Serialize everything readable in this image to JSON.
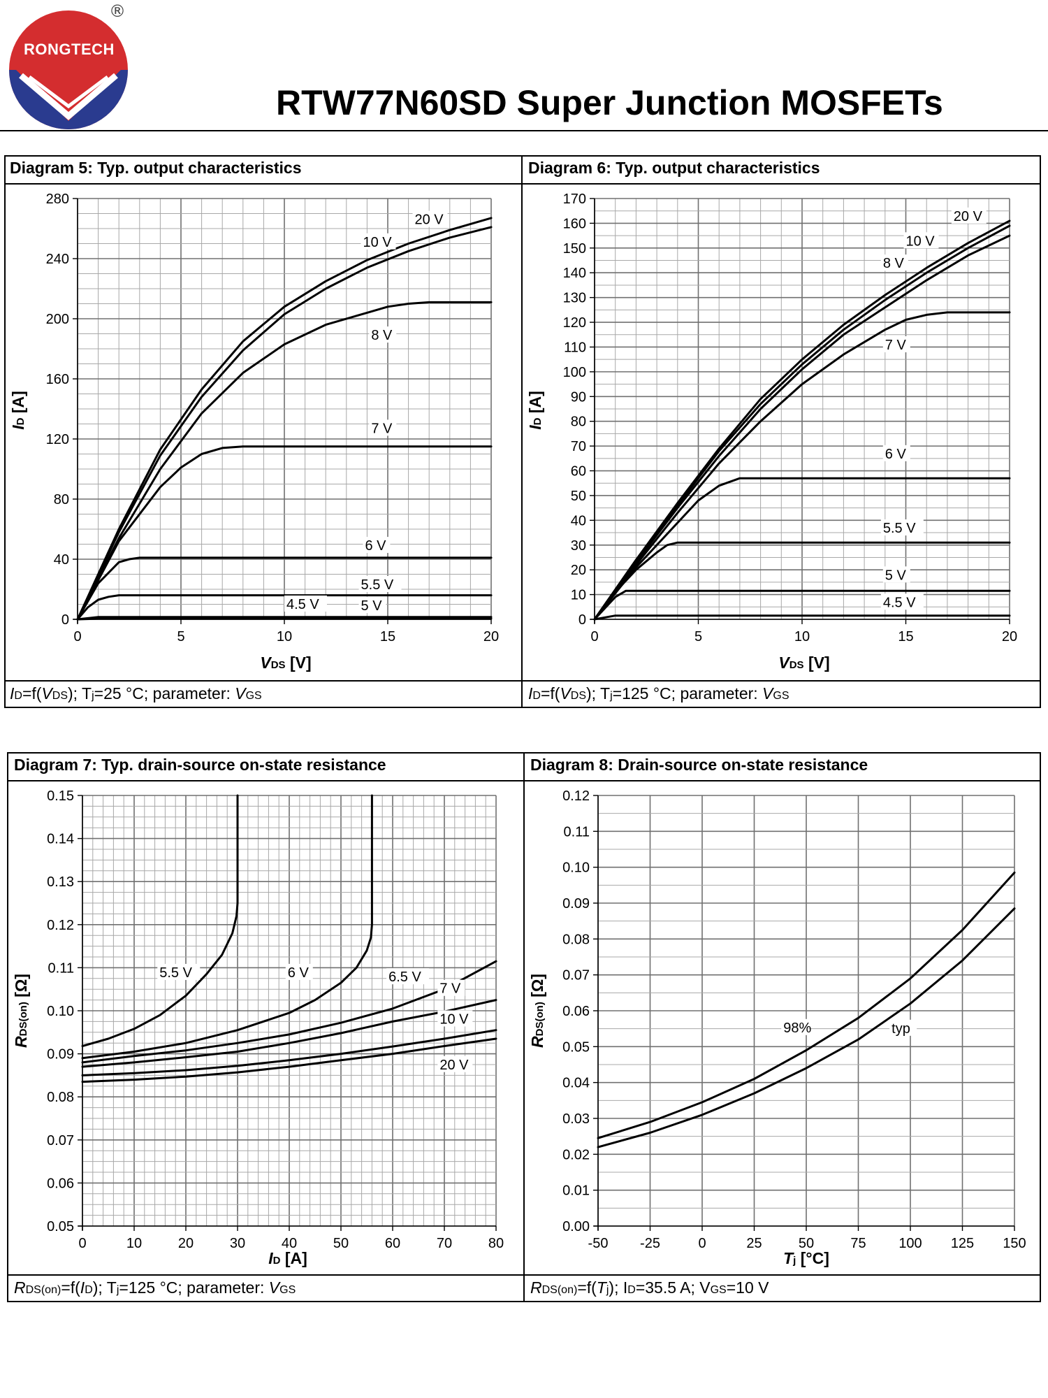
{
  "header": {
    "brand": "RONGTECH",
    "registered": "®",
    "title": "RTW77N60SD Super Junction MOSFETs",
    "colors": {
      "red": "#d42d2f",
      "blue": "#2a3b8f"
    }
  },
  "diagrams": [
    {
      "heading": "Diagram 5: Typ. output characteristics",
      "footer": {
        "y": "I",
        "ysub": "D",
        "mid": "=f(",
        "x": "V",
        "xsub": "DS",
        "tail": "); T",
        "tsub": "j",
        "cond": "=25 °C; parameter: ",
        "p": "V",
        "psub": "GS"
      }
    },
    {
      "heading": "Diagram 6: Typ. output characteristics",
      "footer": {
        "y": "I",
        "ysub": "D",
        "mid": "=f(",
        "x": "V",
        "xsub": "DS",
        "tail": "); T",
        "tsub": "j",
        "cond": "=125 °C; parameter: ",
        "p": "V",
        "psub": "GS"
      }
    },
    {
      "heading": "Diagram 7: Typ. drain-source on-state resistance",
      "footer": {
        "y": "R",
        "ysub": "DS(on)",
        "mid": "=f(",
        "x": "I",
        "xsub": "D",
        "tail": "); T",
        "tsub": "j",
        "cond": "=125 °C; parameter: ",
        "p": "V",
        "psub": "GS"
      }
    },
    {
      "heading": "Diagram 8: Drain-source on-state resistance",
      "footer": {
        "y": "R",
        "ysub": "DS(on)",
        "mid": "=f(",
        "x": "T",
        "xsub": "j",
        "tail": "); I",
        "tsub": "D",
        "cond": "=35.5 A; V",
        "p": "",
        "psub": "GS",
        "cond2": "=10 V"
      }
    }
  ],
  "chart_data": [
    {
      "type": "line",
      "title": "Diagram 5: Typ. output characteristics",
      "xlabel": {
        "main": "V",
        "sub": "DS",
        "unit": " [V]"
      },
      "ylabel": {
        "main": "I",
        "sub": "D",
        "unit": " [A]"
      },
      "xlim": [
        0,
        20
      ],
      "ylim": [
        0,
        280
      ],
      "xticks": [
        0,
        5,
        10,
        15,
        20
      ],
      "yticks": [
        0,
        40,
        80,
        120,
        160,
        200,
        240,
        280
      ],
      "xgrid": 1,
      "ygrid": 10,
      "series": [
        {
          "name": "20 V",
          "x": [
            0,
            2,
            4,
            6,
            8,
            10,
            12,
            14,
            16,
            18,
            20
          ],
          "y": [
            0,
            60,
            113,
            153,
            185,
            208,
            225,
            239,
            250,
            259,
            267
          ]
        },
        {
          "name": "10 V",
          "x": [
            0,
            2,
            4,
            6,
            8,
            10,
            12,
            14,
            16,
            18,
            20
          ],
          "y": [
            0,
            58,
            109,
            148,
            179,
            203,
            220,
            234,
            245,
            254,
            261
          ]
        },
        {
          "name": "8 V",
          "x": [
            0,
            2,
            4,
            6,
            8,
            10,
            12,
            14,
            15,
            16,
            17,
            20
          ],
          "y": [
            0,
            54,
            100,
            137,
            164,
            183,
            196,
            204,
            208,
            210,
            211,
            211
          ]
        },
        {
          "name": "7 V",
          "x": [
            0,
            2,
            4,
            5,
            6,
            7,
            8,
            20
          ],
          "y": [
            0,
            52,
            88,
            101,
            110,
            114,
            115,
            115
          ]
        },
        {
          "name": "6 V",
          "x": [
            0,
            1,
            2,
            2.5,
            3,
            20
          ],
          "y": [
            0,
            24,
            38,
            40,
            41,
            41
          ]
        },
        {
          "name": "5.5 V",
          "x": [
            0,
            0.5,
            1,
            1.5,
            2,
            20
          ],
          "y": [
            0,
            8,
            13,
            15,
            16,
            16
          ]
        },
        {
          "name": "5 V",
          "x": [
            0,
            1,
            20
          ],
          "y": [
            0,
            1.5,
            1.5
          ]
        },
        {
          "name": "4.5 V",
          "x": [
            0,
            1,
            20
          ],
          "y": [
            0,
            0.4,
            0.4
          ]
        }
      ],
      "labels": [
        {
          "text": "20 V",
          "x": 16.3,
          "y": 263
        },
        {
          "text": "10 V",
          "x": 13.8,
          "y": 248
        },
        {
          "text": "8 V",
          "x": 14.2,
          "y": 186
        },
        {
          "text": "7 V",
          "x": 14.2,
          "y": 124
        },
        {
          "text": "6 V",
          "x": 13.9,
          "y": 46
        },
        {
          "text": "5.5 V",
          "x": 13.7,
          "y": 20
        },
        {
          "text": "5 V",
          "x": 13.7,
          "y": 6
        },
        {
          "text": "4.5 V",
          "x": 10.1,
          "y": 7
        }
      ]
    },
    {
      "type": "line",
      "title": "Diagram 6: Typ. output characteristics",
      "xlabel": {
        "main": "V",
        "sub": "DS",
        "unit": " [V]"
      },
      "ylabel": {
        "main": "I",
        "sub": "D",
        "unit": " [A]"
      },
      "xlim": [
        0,
        20
      ],
      "ylim": [
        0,
        170
      ],
      "xticks": [
        0,
        5,
        10,
        15,
        20
      ],
      "yticks": [
        0,
        10,
        20,
        30,
        40,
        50,
        60,
        70,
        80,
        90,
        100,
        110,
        120,
        130,
        140,
        150,
        160,
        170
      ],
      "xgrid": 1,
      "ygrid": 5,
      "series": [
        {
          "name": "20 V",
          "x": [
            0,
            2,
            4,
            6,
            8,
            10,
            12,
            14,
            16,
            18,
            20
          ],
          "y": [
            0,
            24,
            47,
            69,
            89,
            105,
            119,
            131,
            142,
            152,
            161
          ]
        },
        {
          "name": "10 V",
          "x": [
            0,
            2,
            4,
            6,
            8,
            10,
            12,
            14,
            16,
            18,
            20
          ],
          "y": [
            0,
            24,
            46,
            68,
            87,
            103,
            117,
            129,
            140,
            150,
            159
          ]
        },
        {
          "name": "8 V",
          "x": [
            0,
            2,
            4,
            6,
            8,
            10,
            12,
            14,
            16,
            18,
            20
          ],
          "y": [
            0,
            23,
            45,
            66,
            85,
            101,
            115,
            126,
            137,
            147,
            155
          ]
        },
        {
          "name": "7 V",
          "x": [
            0,
            2,
            4,
            6,
            8,
            10,
            12,
            14,
            15,
            16,
            17,
            20
          ],
          "y": [
            0,
            22,
            43,
            63,
            80,
            95,
            107,
            117,
            121,
            123,
            124,
            124
          ]
        },
        {
          "name": "6 V",
          "x": [
            0,
            2,
            4,
            5,
            6,
            7,
            20
          ],
          "y": [
            0,
            21,
            39,
            48,
            54,
            57,
            57
          ]
        },
        {
          "name": "5.5 V",
          "x": [
            0,
            1,
            2,
            3,
            3.5,
            4,
            20
          ],
          "y": [
            0,
            11,
            20,
            27,
            30,
            31,
            31
          ]
        },
        {
          "name": "5 V",
          "x": [
            0,
            1,
            1.5,
            20
          ],
          "y": [
            0,
            9,
            11.5,
            11.5
          ]
        },
        {
          "name": "4.5 V",
          "x": [
            0,
            1,
            20
          ],
          "y": [
            0,
            1.5,
            1.5
          ]
        }
      ],
      "labels": [
        {
          "text": "20 V",
          "x": 17.3,
          "y": 161
        },
        {
          "text": "10 V",
          "x": 15.0,
          "y": 151
        },
        {
          "text": "8 V",
          "x": 13.9,
          "y": 142
        },
        {
          "text": "7 V",
          "x": 14.0,
          "y": 109
        },
        {
          "text": "6 V",
          "x": 14.0,
          "y": 65
        },
        {
          "text": "5.5 V",
          "x": 13.9,
          "y": 35
        },
        {
          "text": "5 V",
          "x": 14.0,
          "y": 16
        },
        {
          "text": "4.5 V",
          "x": 13.9,
          "y": 5
        }
      ]
    },
    {
      "type": "line",
      "title": "Diagram 7: Typ. drain-source on-state resistance",
      "xlabel": {
        "main": "I",
        "sub": "D",
        "unit": " [A]"
      },
      "ylabel": {
        "main": "R",
        "sub": "DS(on)",
        "unit": " [Ω]"
      },
      "xlim": [
        0,
        80
      ],
      "ylim": [
        0.05,
        0.15
      ],
      "xticks": [
        0,
        10,
        20,
        30,
        40,
        50,
        60,
        70,
        80
      ],
      "yticks": [
        0.05,
        0.06,
        0.07,
        0.08,
        0.09,
        0.1,
        0.11,
        0.12,
        0.13,
        0.14,
        0.15
      ],
      "xgrid": 2,
      "ygrid": 0.0025,
      "series": [
        {
          "name": "5.5 V",
          "x": [
            0,
            5,
            10,
            15,
            20,
            24,
            27,
            29,
            29.8,
            30,
            30
          ],
          "y": [
            0.0918,
            0.0935,
            0.0958,
            0.099,
            0.1035,
            0.1085,
            0.113,
            0.118,
            0.122,
            0.125,
            0.15
          ]
        },
        {
          "name": "6 V",
          "x": [
            0,
            10,
            20,
            30,
            40,
            45,
            50,
            53,
            55,
            55.8,
            56,
            56
          ],
          "y": [
            0.089,
            0.0905,
            0.0925,
            0.0955,
            0.0995,
            0.1025,
            0.1065,
            0.11,
            0.114,
            0.117,
            0.12,
            0.15
          ]
        },
        {
          "name": "6.5 V",
          "x": [
            0,
            10,
            20,
            30,
            40,
            50,
            60,
            70,
            80
          ],
          "y": [
            0.088,
            0.0895,
            0.0908,
            0.0925,
            0.0945,
            0.0972,
            0.1005,
            0.105,
            0.1115
          ]
        },
        {
          "name": "7 V",
          "x": [
            0,
            10,
            20,
            30,
            40,
            50,
            60,
            70,
            80
          ],
          "y": [
            0.087,
            0.088,
            0.0892,
            0.0905,
            0.0925,
            0.0948,
            0.0975,
            0.0998,
            0.1025
          ]
        },
        {
          "name": "10 V",
          "x": [
            0,
            10,
            20,
            30,
            40,
            50,
            60,
            70,
            80
          ],
          "y": [
            0.085,
            0.0855,
            0.0862,
            0.0872,
            0.0885,
            0.09,
            0.0917,
            0.0935,
            0.0955
          ]
        },
        {
          "name": "20 V",
          "x": [
            0,
            10,
            20,
            30,
            40,
            50,
            60,
            70,
            80
          ],
          "y": [
            0.0835,
            0.084,
            0.0847,
            0.0857,
            0.087,
            0.0885,
            0.09,
            0.0918,
            0.0935
          ]
        }
      ],
      "labels": [
        {
          "text": "5.5 V",
          "x": 14.9,
          "y": 0.1078
        },
        {
          "text": "6 V",
          "x": 39.7,
          "y": 0.1078
        },
        {
          "text": "6.5 V",
          "x": 59.2,
          "y": 0.1068
        },
        {
          "text": "7 V",
          "x": 69.1,
          "y": 0.1041
        },
        {
          "text": "10 V",
          "x": 69.1,
          "y": 0.097
        },
        {
          "text": "20 V",
          "x": 69.1,
          "y": 0.0864
        }
      ]
    },
    {
      "type": "line",
      "title": "Diagram 8: Drain-source on-state resistance",
      "xlabel": {
        "main": "T",
        "sub": "j",
        "unit": " [°C]"
      },
      "ylabel": {
        "main": "R",
        "sub": "DS(on)",
        "unit": " [Ω]"
      },
      "xlim": [
        -50,
        150
      ],
      "ylim": [
        0,
        0.12
      ],
      "xticks": [
        -50,
        -25,
        0,
        25,
        50,
        75,
        100,
        125,
        150
      ],
      "yticks": [
        0.0,
        0.01,
        0.02,
        0.03,
        0.04,
        0.05,
        0.06,
        0.07,
        0.08,
        0.09,
        0.1,
        0.11,
        0.12
      ],
      "xgrid": 25,
      "ygrid": 0.005,
      "series": [
        {
          "name": "98%",
          "x": [
            -50,
            -25,
            0,
            25,
            50,
            75,
            100,
            125,
            150
          ],
          "y": [
            0.0245,
            0.029,
            0.0345,
            0.041,
            0.049,
            0.058,
            0.069,
            0.0825,
            0.0985
          ]
        },
        {
          "name": "typ",
          "x": [
            -50,
            -25,
            0,
            25,
            50,
            75,
            100,
            125,
            150
          ],
          "y": [
            0.022,
            0.026,
            0.031,
            0.037,
            0.044,
            0.052,
            0.062,
            0.074,
            0.0885
          ]
        }
      ],
      "labels": [
        {
          "text": "98%",
          "x": 39,
          "y": 0.054
        },
        {
          "text": "typ",
          "x": 91,
          "y": 0.0538
        }
      ]
    }
  ]
}
